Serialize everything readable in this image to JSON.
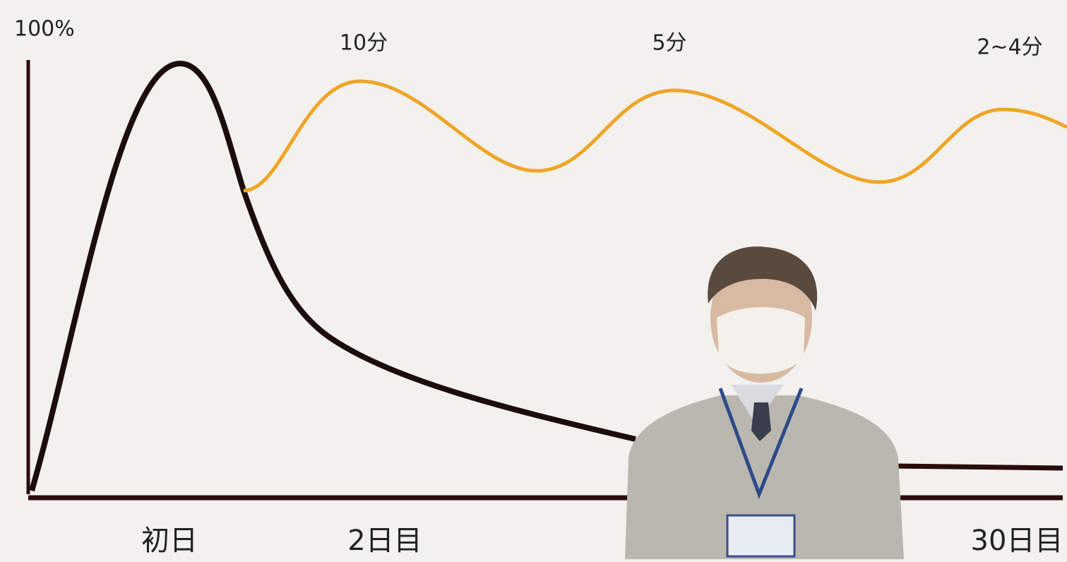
{
  "y_axis_label": "100%",
  "interval_labels": [
    "10分",
    "5分",
    "2~4分"
  ],
  "day_labels": [
    "初日",
    "2日目",
    "30日目"
  ]
}
